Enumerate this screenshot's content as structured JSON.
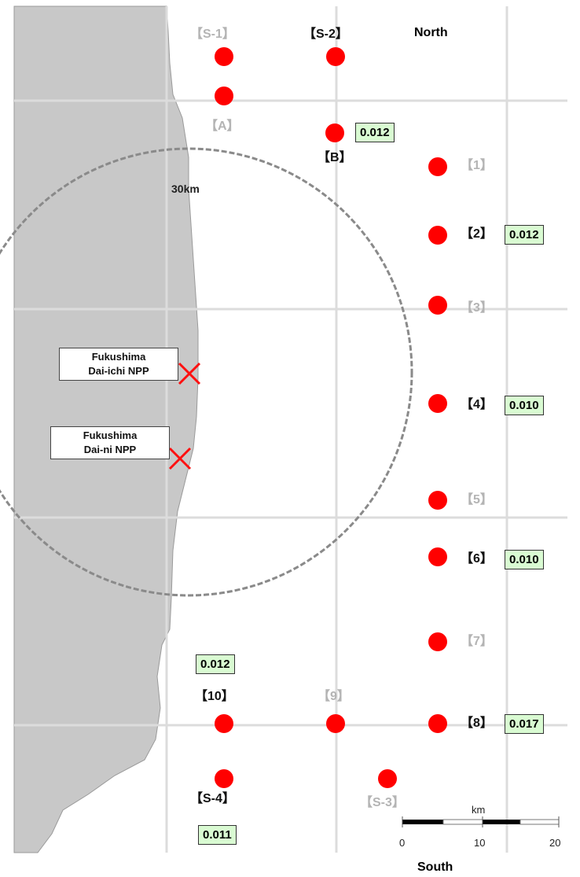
{
  "map": {
    "north_label": "North",
    "south_label": "South",
    "zone_label": "30km",
    "scale": {
      "unit": "km",
      "ticks": [
        "0",
        "10",
        "20"
      ]
    },
    "npp": [
      {
        "line1": "Fukushima",
        "line2": "Dai-ichi NPP"
      },
      {
        "line1": "Fukushima",
        "line2": "Dai-ni NPP"
      }
    ],
    "stations": [
      {
        "id": "S-1",
        "label": "【S-1】",
        "active": false
      },
      {
        "id": "S-2",
        "label": "【S-2】",
        "active": true
      },
      {
        "id": "A",
        "label": "【A】",
        "active": false
      },
      {
        "id": "B",
        "label": "【B】",
        "active": true,
        "value": "0.012"
      },
      {
        "id": "1",
        "label": "【1】",
        "active": false
      },
      {
        "id": "2",
        "label": "【2】",
        "active": true,
        "value": "0.012"
      },
      {
        "id": "3",
        "label": "【3】",
        "active": false
      },
      {
        "id": "4",
        "label": "【4】",
        "active": true,
        "value": "0.010"
      },
      {
        "id": "5",
        "label": "【5】",
        "active": false
      },
      {
        "id": "6",
        "label": "【6】",
        "active": true,
        "value": "0.010"
      },
      {
        "id": "7",
        "label": "【7】",
        "active": false
      },
      {
        "id": "8",
        "label": "【8】",
        "active": true,
        "value": "0.017"
      },
      {
        "id": "9",
        "label": "【9】",
        "active": false
      },
      {
        "id": "10",
        "label": "【10】",
        "active": true,
        "value": "0.012"
      },
      {
        "id": "S-3",
        "label": "【S-3】",
        "active": false
      },
      {
        "id": "S-4",
        "label": "【S-4】",
        "active": true,
        "value": "0.011"
      }
    ],
    "colors": {
      "land": "#c8c8c8",
      "sea": "#ffffff",
      "grid": "#dcdcdc",
      "station": "#ff0000",
      "value_bg": "#d9fbd2",
      "active_label": "#111111",
      "inactive_label": "#b4b4b4"
    }
  }
}
